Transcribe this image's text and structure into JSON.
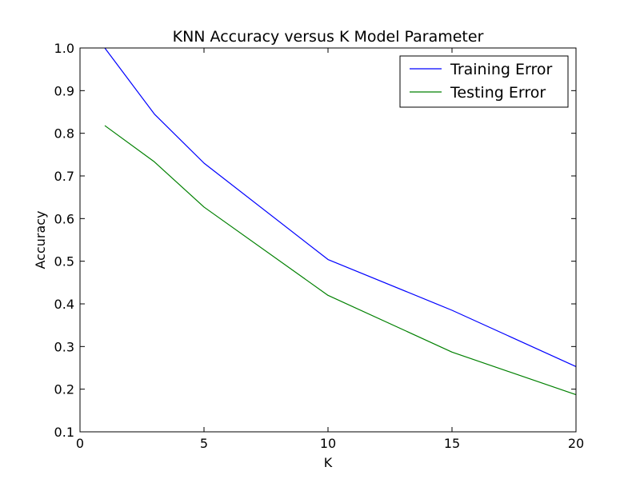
{
  "chart_data": {
    "type": "line",
    "title": "KNN Accuracy versus K Model Parameter",
    "xlabel": "K",
    "ylabel": "Accuracy",
    "xlim": [
      0,
      20
    ],
    "ylim": [
      0.1,
      1.0
    ],
    "xticks": [
      0,
      5,
      10,
      15,
      20
    ],
    "xtick_labels": [
      "0",
      "5",
      "10",
      "15",
      "20"
    ],
    "yticks": [
      0.1,
      0.2,
      0.3,
      0.4,
      0.5,
      0.6,
      0.7,
      0.8,
      0.9,
      1.0
    ],
    "ytick_labels": [
      "0.1",
      "0.2",
      "0.3",
      "0.4",
      "0.5",
      "0.6",
      "0.7",
      "0.8",
      "0.9",
      "1.0"
    ],
    "grid": false,
    "legend_position": "top-right",
    "x": [
      1,
      3,
      5,
      10,
      15,
      20
    ],
    "series": [
      {
        "name": "Training Error",
        "color": "#0000ff",
        "values": [
          1.0,
          0.845,
          0.73,
          0.504,
          0.385,
          0.253
        ]
      },
      {
        "name": "Testing Error",
        "color": "#008000",
        "values": [
          0.818,
          0.733,
          0.627,
          0.42,
          0.287,
          0.187
        ]
      }
    ]
  }
}
